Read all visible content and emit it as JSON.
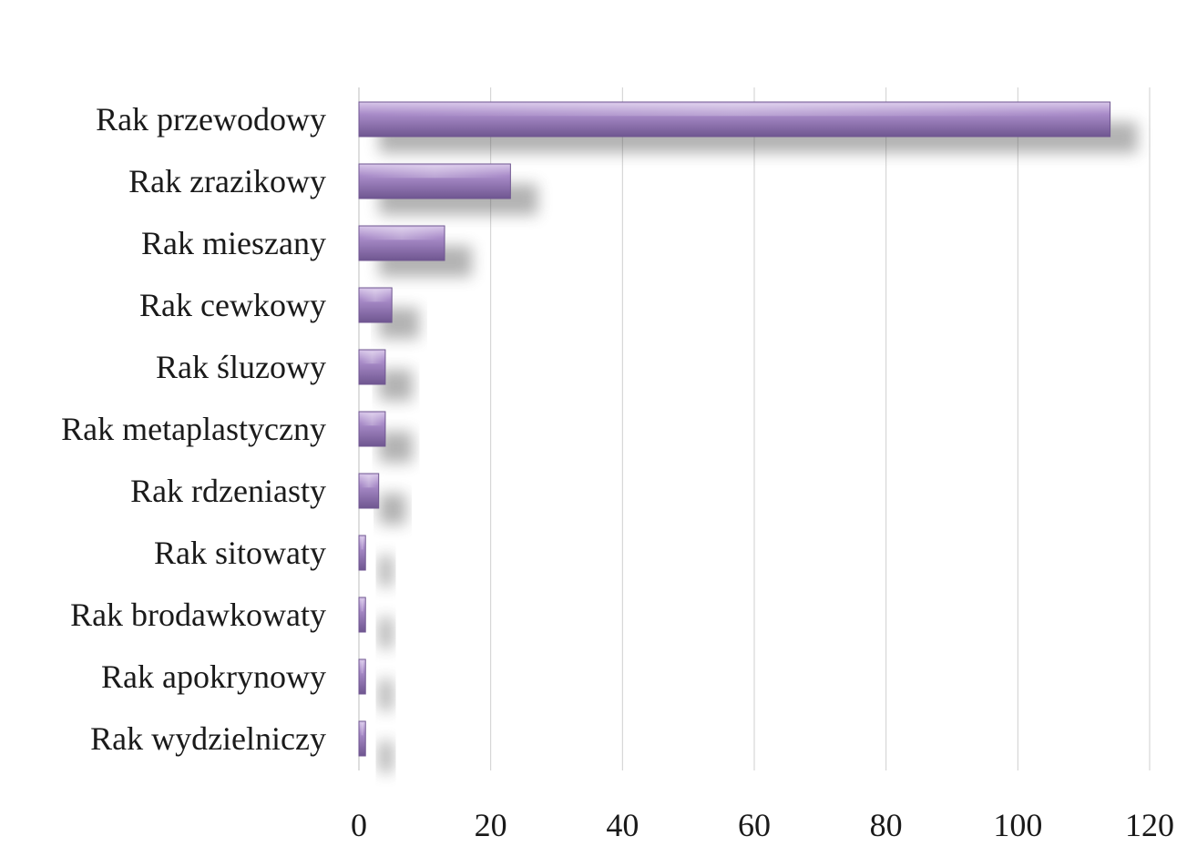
{
  "chart_data": {
    "type": "bar",
    "orientation": "horizontal",
    "categories": [
      "Rak przewodowy",
      "Rak zrazikowy",
      "Rak mieszany",
      "Rak cewkowy",
      "Rak śluzowy",
      "Rak metaplastyczny",
      "Rak rdzeniasty",
      "Rak sitowaty",
      "Rak brodawkowaty",
      "Rak apokrynowy",
      "Rak wydzielniczy"
    ],
    "values": [
      114,
      23,
      13,
      5,
      4,
      4,
      3,
      1,
      1,
      1,
      1
    ],
    "xlim": [
      0,
      120
    ],
    "xticks": [
      0,
      20,
      40,
      60,
      80,
      100,
      120
    ],
    "grid": true,
    "legend": "none",
    "colors": {
      "bar_light": "#d9c8ea",
      "bar_mid": "#a88bc8",
      "bar_dark": "#6f5690",
      "shadow": "#555555"
    }
  }
}
